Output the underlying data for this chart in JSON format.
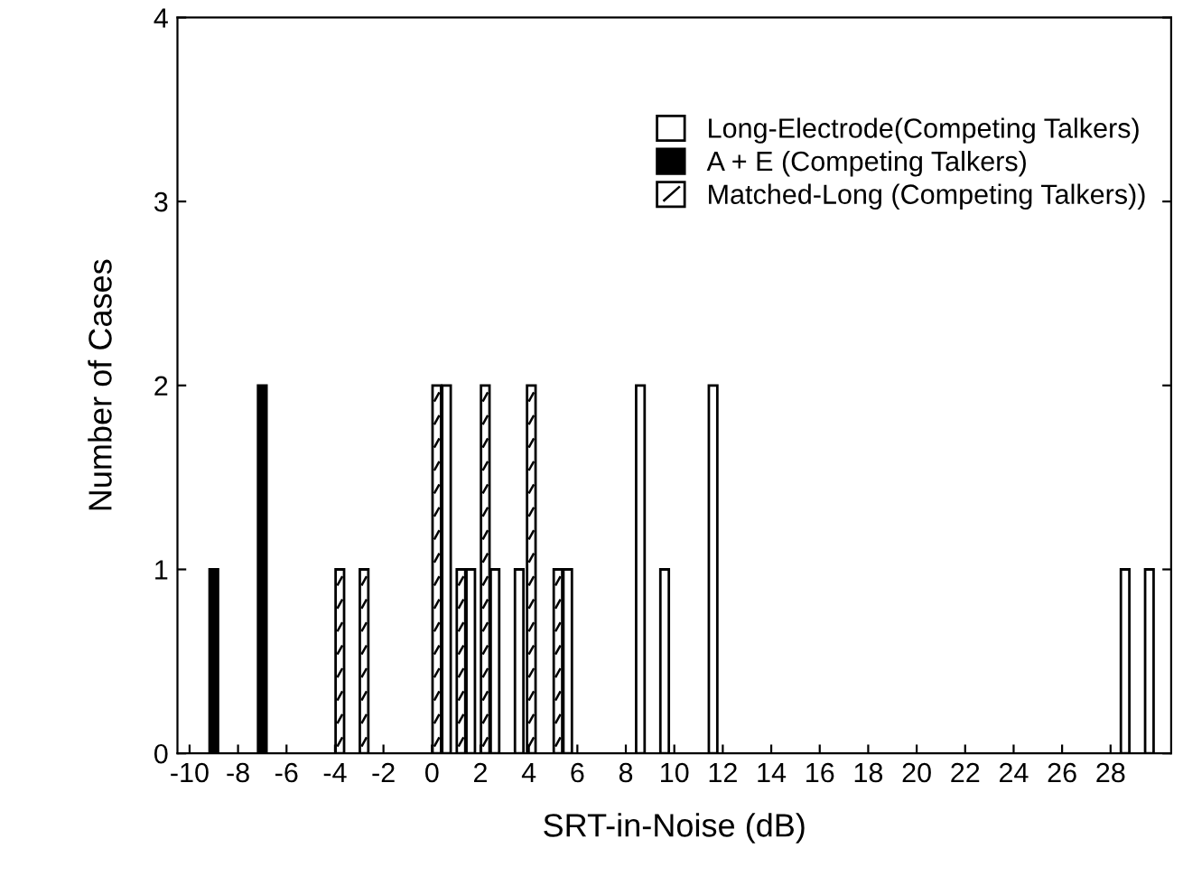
{
  "chart_data": {
    "type": "bar",
    "xlabel": "SRT-in-Noise (dB)",
    "ylabel": "Number of Cases",
    "xlim": [
      -10.5,
      30.5
    ],
    "xticks": [
      -10,
      -8,
      -6,
      -4,
      -2,
      0,
      2,
      4,
      6,
      8,
      10,
      12,
      14,
      16,
      18,
      20,
      22,
      24,
      26,
      28
    ],
    "ylim": [
      0,
      4
    ],
    "yticks": [
      0,
      1,
      2,
      3,
      4
    ],
    "legend": "top right",
    "grid": false,
    "series": [
      {
        "name": "Long-Electrode(Competing Talkers)",
        "color": "#ffffff",
        "x": [
          0.6,
          1.6,
          2.6,
          3.6,
          5.6,
          8.6,
          9.6,
          11.6,
          28.6,
          29.6
        ],
        "values": [
          2,
          1,
          1,
          1,
          1,
          2,
          1,
          2,
          1,
          1
        ]
      },
      {
        "name": "A + E (Competing Talkers)",
        "color": "#000000",
        "x": [
          -9,
          -7
        ],
        "values": [
          1,
          2
        ]
      },
      {
        "name": "Matched-Long (Competing Talkers))",
        "color": "#ffffff",
        "x": [
          -3.8,
          -2.8,
          0.2,
          1.2,
          2.2,
          4.1,
          5.2
        ],
        "values": [
          1,
          1,
          2,
          1,
          2,
          2,
          1
        ]
      }
    ]
  }
}
